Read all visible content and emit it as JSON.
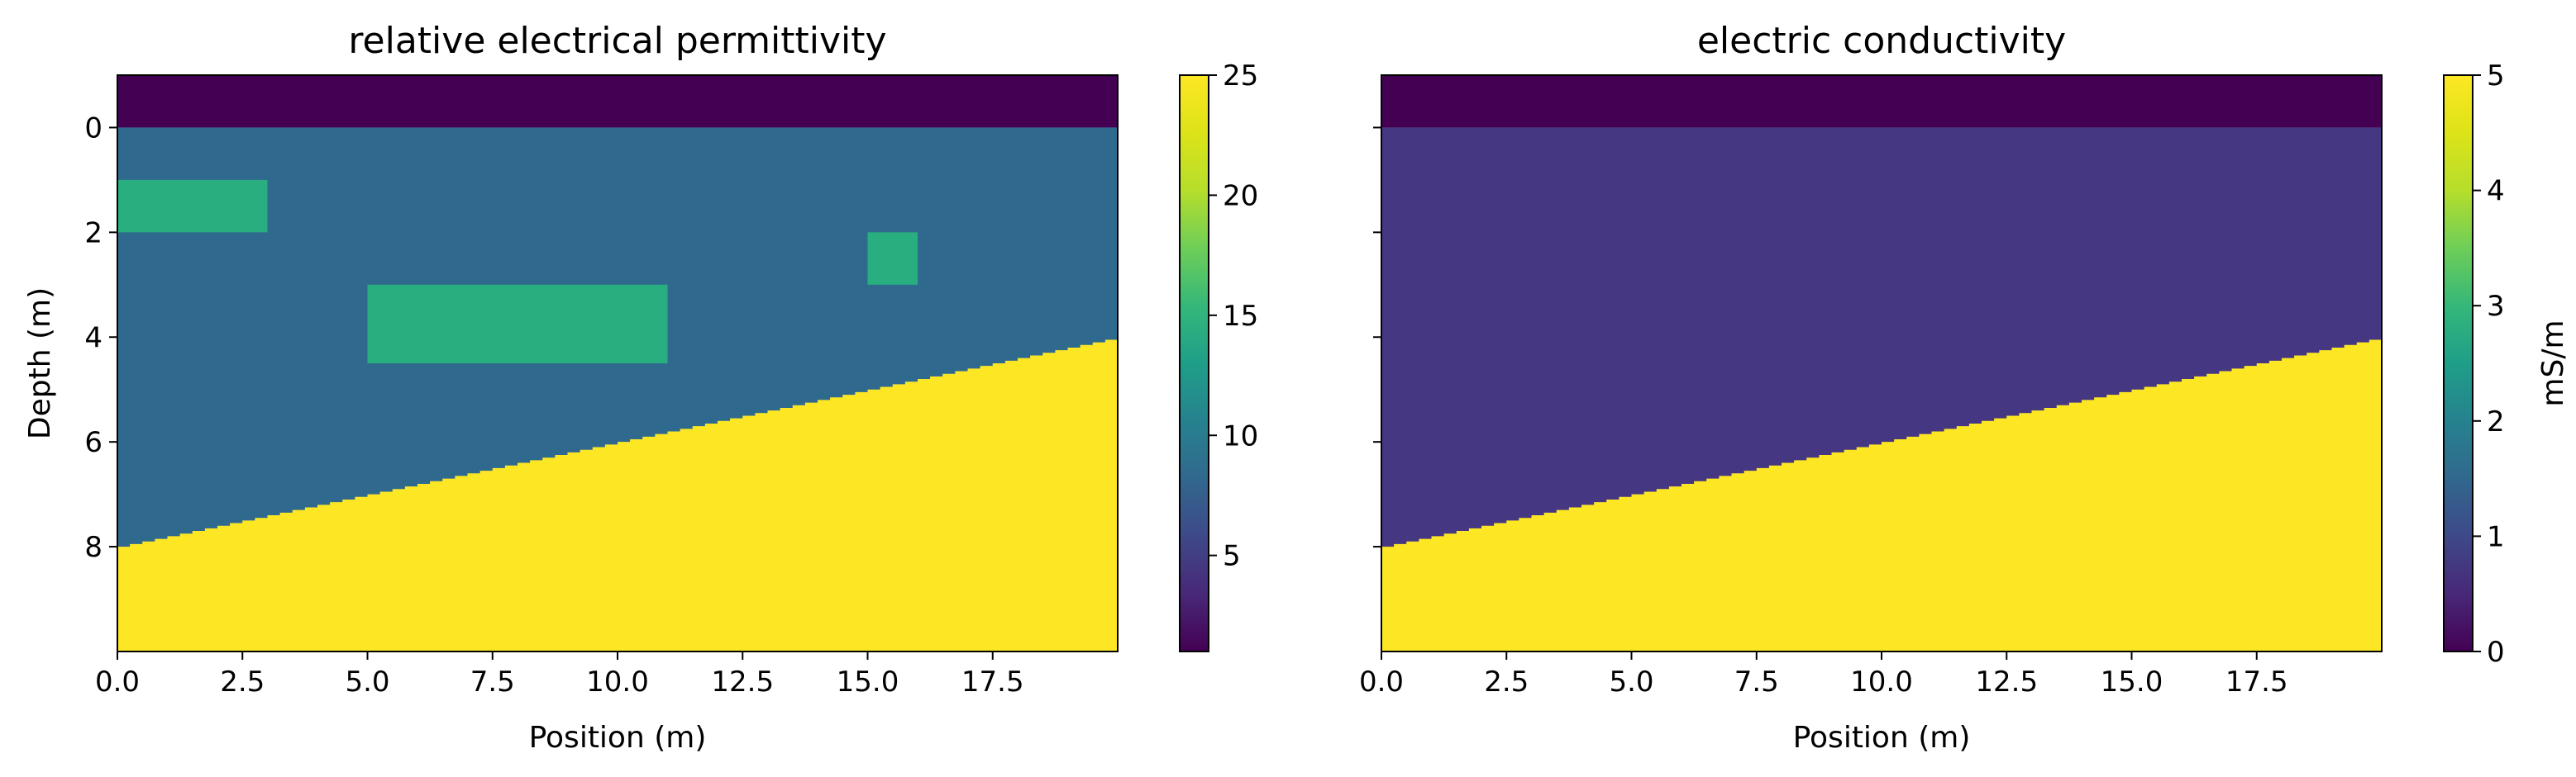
{
  "chart_data": [
    {
      "type": "heatmap",
      "title": "relative electrical permittivity",
      "xlabel": "Position (m)",
      "ylabel": "Depth (m)",
      "xlim": [
        0,
        20
      ],
      "ylim": [
        10,
        -1
      ],
      "x_ticks": [
        "0.0",
        "2.5",
        "5.0",
        "7.5",
        "10.0",
        "12.5",
        "15.0",
        "17.5"
      ],
      "y_ticks": [
        "0",
        "2",
        "4",
        "6",
        "8"
      ],
      "y_tick_values": [
        0,
        2,
        4,
        6,
        8
      ],
      "x_tick_values": [
        0,
        2.5,
        5,
        7.5,
        10,
        12.5,
        15,
        17.5
      ],
      "colormap": "viridis",
      "colorbar": {
        "vmin": 1,
        "vmax": 25,
        "ticks": [
          "5",
          "10",
          "15",
          "20",
          "25"
        ],
        "tick_values": [
          5,
          10,
          15,
          20,
          25
        ],
        "label": ""
      },
      "layers": [
        {
          "value": 1,
          "top": -1,
          "bottom": 0
        },
        {
          "value": 9,
          "top": 0,
          "bottom": "interface"
        },
        {
          "value": 25,
          "top": "interface",
          "bottom": 10
        }
      ],
      "interface": {
        "depth_at_x0": 8.0,
        "depth_at_x20": 4.0,
        "step_width": 0.25
      },
      "inclusions": [
        {
          "value": 16,
          "x": [
            0,
            3
          ],
          "depth": [
            1,
            2
          ]
        },
        {
          "value": 16,
          "x": [
            5,
            11
          ],
          "depth": [
            3,
            4.5
          ]
        },
        {
          "value": 16,
          "x": [
            15,
            16
          ],
          "depth": [
            2,
            3
          ]
        }
      ],
      "colors": {
        "top": "#440154",
        "middle": "#30698e",
        "inclusion": "#29af7f",
        "bottom": "#fde725"
      }
    },
    {
      "type": "heatmap",
      "title": "electric conductivity",
      "xlabel": "Position (m)",
      "ylabel": "",
      "xlim": [
        0,
        20
      ],
      "ylim": [
        10,
        -1
      ],
      "x_ticks": [
        "0.0",
        "2.5",
        "5.0",
        "7.5",
        "10.0",
        "12.5",
        "15.0",
        "17.5"
      ],
      "x_tick_values": [
        0,
        2.5,
        5,
        7.5,
        10,
        12.5,
        15,
        17.5
      ],
      "y_tick_values": [
        0,
        2,
        4,
        6,
        8
      ],
      "colormap": "viridis",
      "colorbar": {
        "vmin": 0,
        "vmax": 5,
        "ticks": [
          "0",
          "1",
          "2",
          "3",
          "4",
          "5"
        ],
        "tick_values": [
          0,
          1,
          2,
          3,
          4,
          5
        ],
        "label": "mS/m"
      },
      "layers": [
        {
          "value": 0,
          "top": -1,
          "bottom": 0
        },
        {
          "value": 1,
          "top": 0,
          "bottom": "interface"
        },
        {
          "value": 5,
          "top": "interface",
          "bottom": 10
        }
      ],
      "interface": {
        "depth_at_x0": 8.0,
        "depth_at_x20": 4.0,
        "step_width": 0.25
      },
      "inclusions": [],
      "colors": {
        "top": "#440154",
        "middle": "#453781",
        "bottom": "#fde725"
      }
    }
  ]
}
